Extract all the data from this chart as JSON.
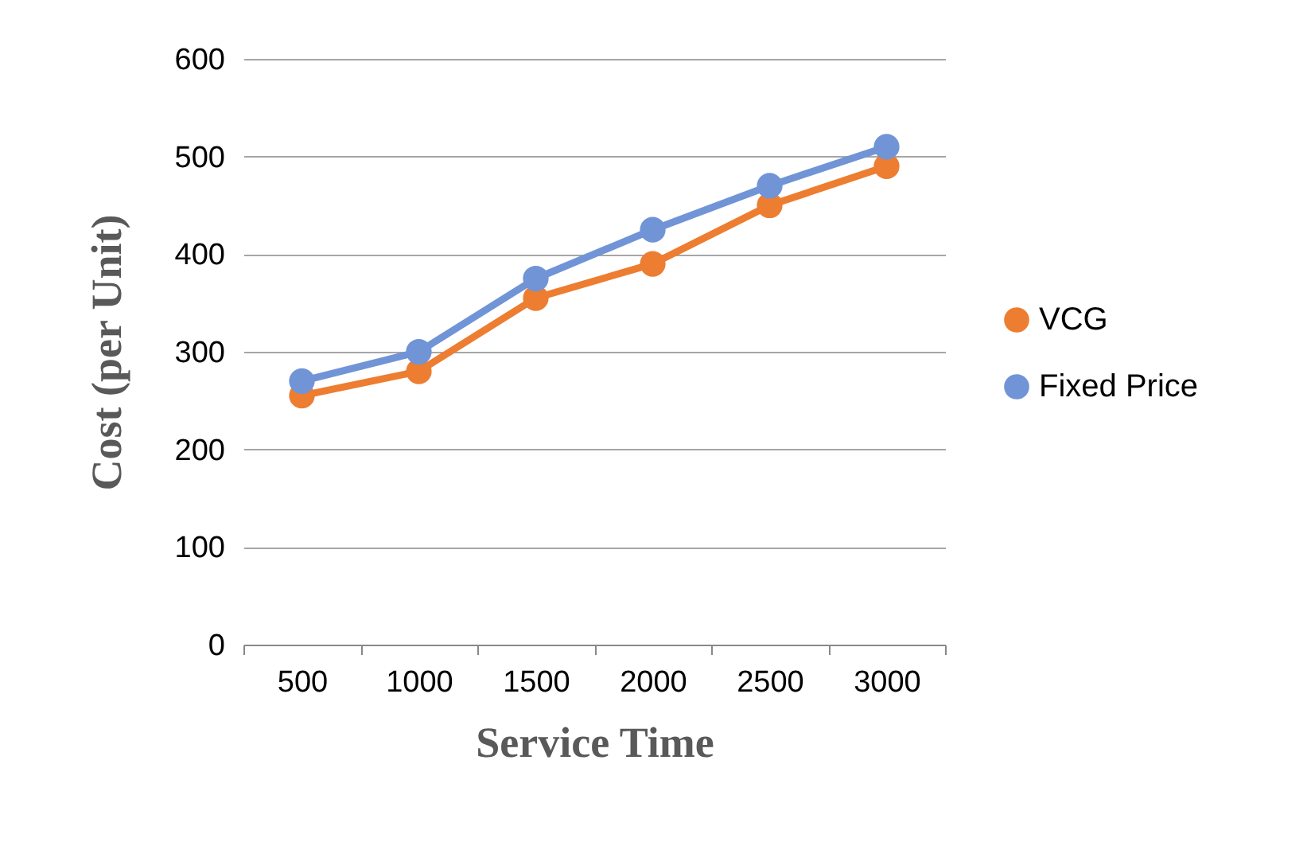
{
  "chart_data": {
    "type": "line",
    "xlabel": "Service Time",
    "ylabel": "Cost (per Unit)",
    "categories": [
      "500",
      "1000",
      "1500",
      "2000",
      "2500",
      "3000"
    ],
    "series": [
      {
        "name": "VCG",
        "color": "#ed7d31",
        "values": [
          255,
          280,
          355,
          390,
          450,
          490
        ]
      },
      {
        "name": "Fixed Price",
        "color": "#7094d6",
        "values": [
          270,
          300,
          375,
          425,
          470,
          510
        ]
      }
    ],
    "ylim": [
      0,
      600
    ],
    "yticks": [
      0,
      100,
      200,
      300,
      400,
      500,
      600
    ],
    "grid": "y",
    "legend": "right",
    "marker": "circle",
    "line_style": "solid"
  }
}
